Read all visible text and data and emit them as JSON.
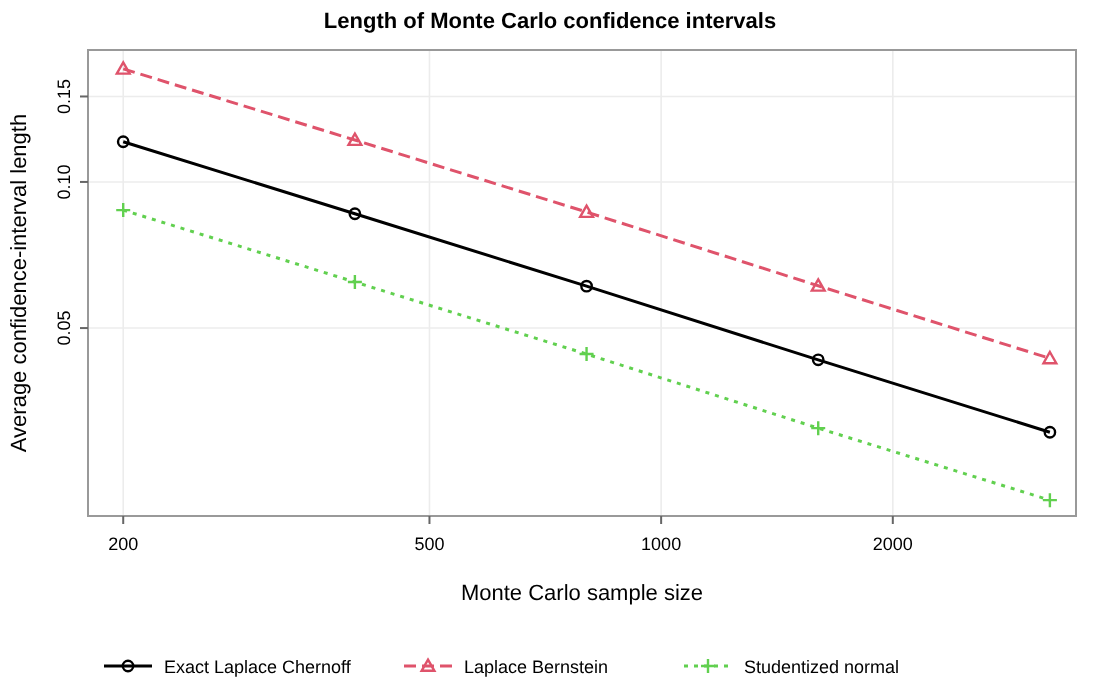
{
  "chart_data": {
    "type": "line",
    "title": "Length of Monte Carlo confidence intervals",
    "xlabel": "Monte Carlo sample size",
    "ylabel": "Average confidence-interval length",
    "x": [
      200,
      400,
      800,
      1600,
      3200
    ],
    "log": "xy",
    "grid": true,
    "legend": "bottom",
    "xlim": [
      180,
      3460
    ],
    "xticks": [
      200,
      500,
      1000,
      2000
    ],
    "ylim": [
      0.0205,
      0.187
    ],
    "yticks": [
      0.05,
      {
        "value": 0.1,
        "label": "0.10"
      },
      0.15
    ],
    "series": [
      {
        "name": "Exact Laplace Chernoff",
        "color": "#000000",
        "values": [
          0.121,
          0.086,
          0.061,
          0.043,
          0.0305
        ],
        "marker": "circle",
        "line_style": "solid"
      },
      {
        "name": "Laplace Bernstein",
        "color": "#df536b",
        "values": [
          0.171,
          0.122,
          0.0867,
          0.0611,
          0.0433
        ],
        "marker": "triangle",
        "line_style": "dashed"
      },
      {
        "name": "Studentized normal",
        "color": "#61d04f",
        "values": [
          0.0875,
          0.0622,
          0.0442,
          0.0311,
          0.0221
        ],
        "marker": "cross",
        "line_style": "dotted"
      }
    ]
  }
}
